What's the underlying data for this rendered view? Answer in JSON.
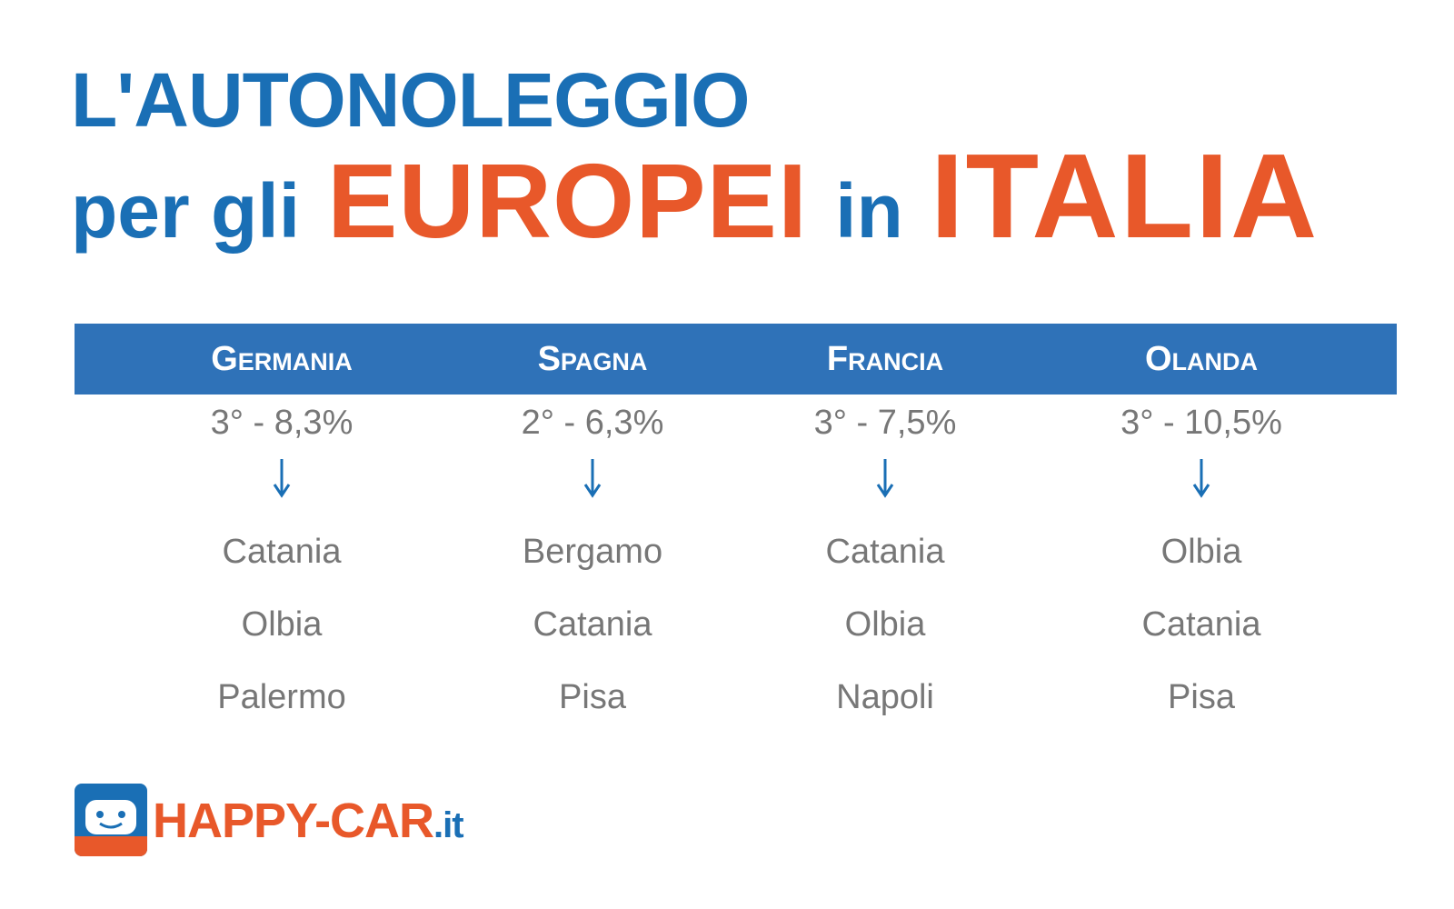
{
  "header": {
    "line1": "L'AUTONOLEGGIO",
    "line2": [
      "per gli",
      "EUROPEI",
      "in",
      "ITALIA"
    ]
  },
  "table": {
    "columns": [
      {
        "country": "Germania",
        "stat": "3° - 8,3%",
        "cities": [
          "Catania",
          "Olbia",
          "Palermo"
        ]
      },
      {
        "country": "Spagna",
        "stat": "2° - 6,3%",
        "cities": [
          "Bergamo",
          "Catania",
          "Pisa"
        ]
      },
      {
        "country": "Francia",
        "stat": "3° - 7,5%",
        "cities": [
          "Catania",
          "Olbia",
          "Napoli"
        ]
      },
      {
        "country": "Olanda",
        "stat": "3° - 10,5%",
        "cities": [
          "Olbia",
          "Catania",
          "Pisa"
        ]
      }
    ]
  },
  "logo": {
    "name": "HAPPY-CAR",
    "suffix": ".it"
  }
}
